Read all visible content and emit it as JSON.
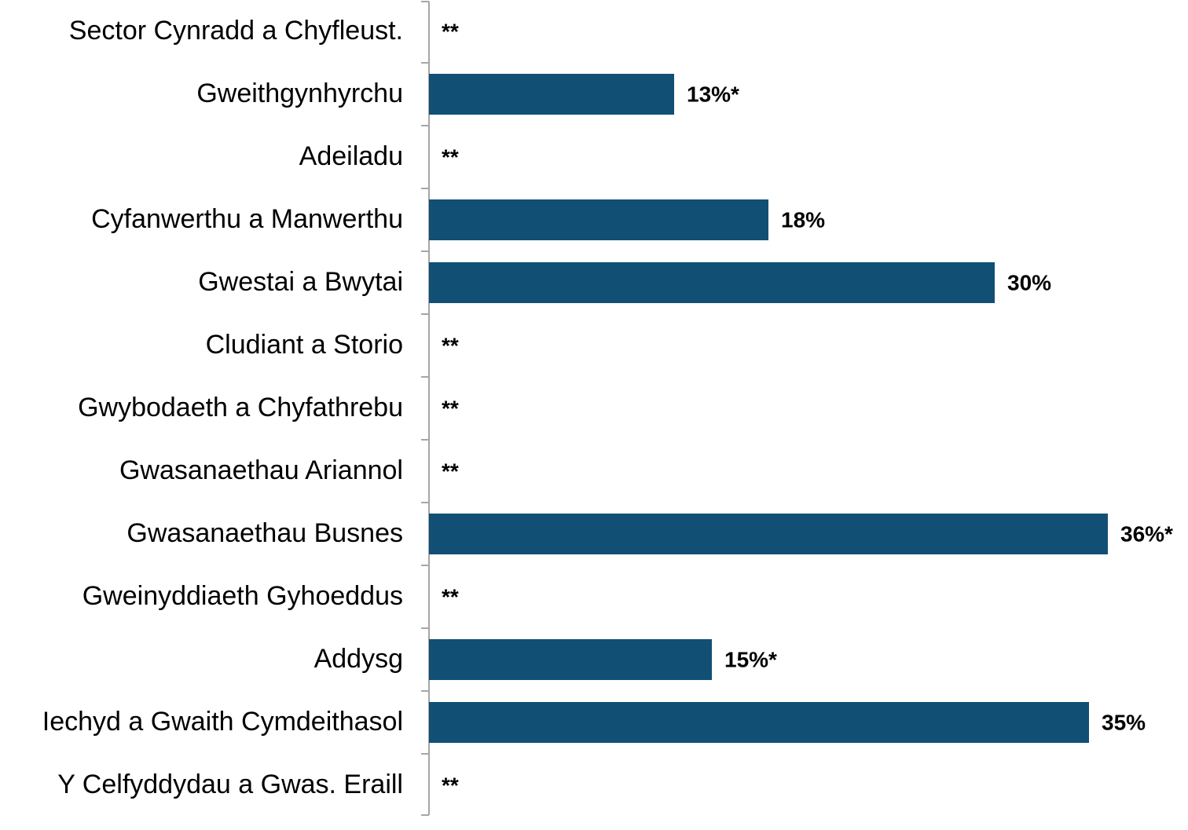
{
  "chart_data": {
    "type": "bar",
    "orientation": "horizontal",
    "categories": [
      "Sector Cynradd a Chyfleust.",
      "Gweithgynhyrchu",
      "Adeiladu",
      "Cyfanwerthu a Manwerthu",
      "Gwestai a Bwytai",
      "Cludiant a Storio",
      "Gwybodaeth a Chyfathrebu",
      "Gwasanaethau Ariannol",
      "Gwasanaethau Busnes",
      "Gweinyddiaeth Gyhoeddus",
      "Addysg",
      "Iechyd a Gwaith Cymdeithasol",
      "Y Celfyddydau a Gwas. Eraill"
    ],
    "values": [
      null,
      13,
      null,
      18,
      30,
      null,
      null,
      null,
      36,
      null,
      15,
      35,
      null
    ],
    "value_labels": [
      "**",
      "13%*",
      "**",
      "18%",
      "30%",
      "**",
      "**",
      "**",
      "36%*",
      "**",
      "15%*",
      "35%",
      "**"
    ],
    "color": "#124f74"
  }
}
